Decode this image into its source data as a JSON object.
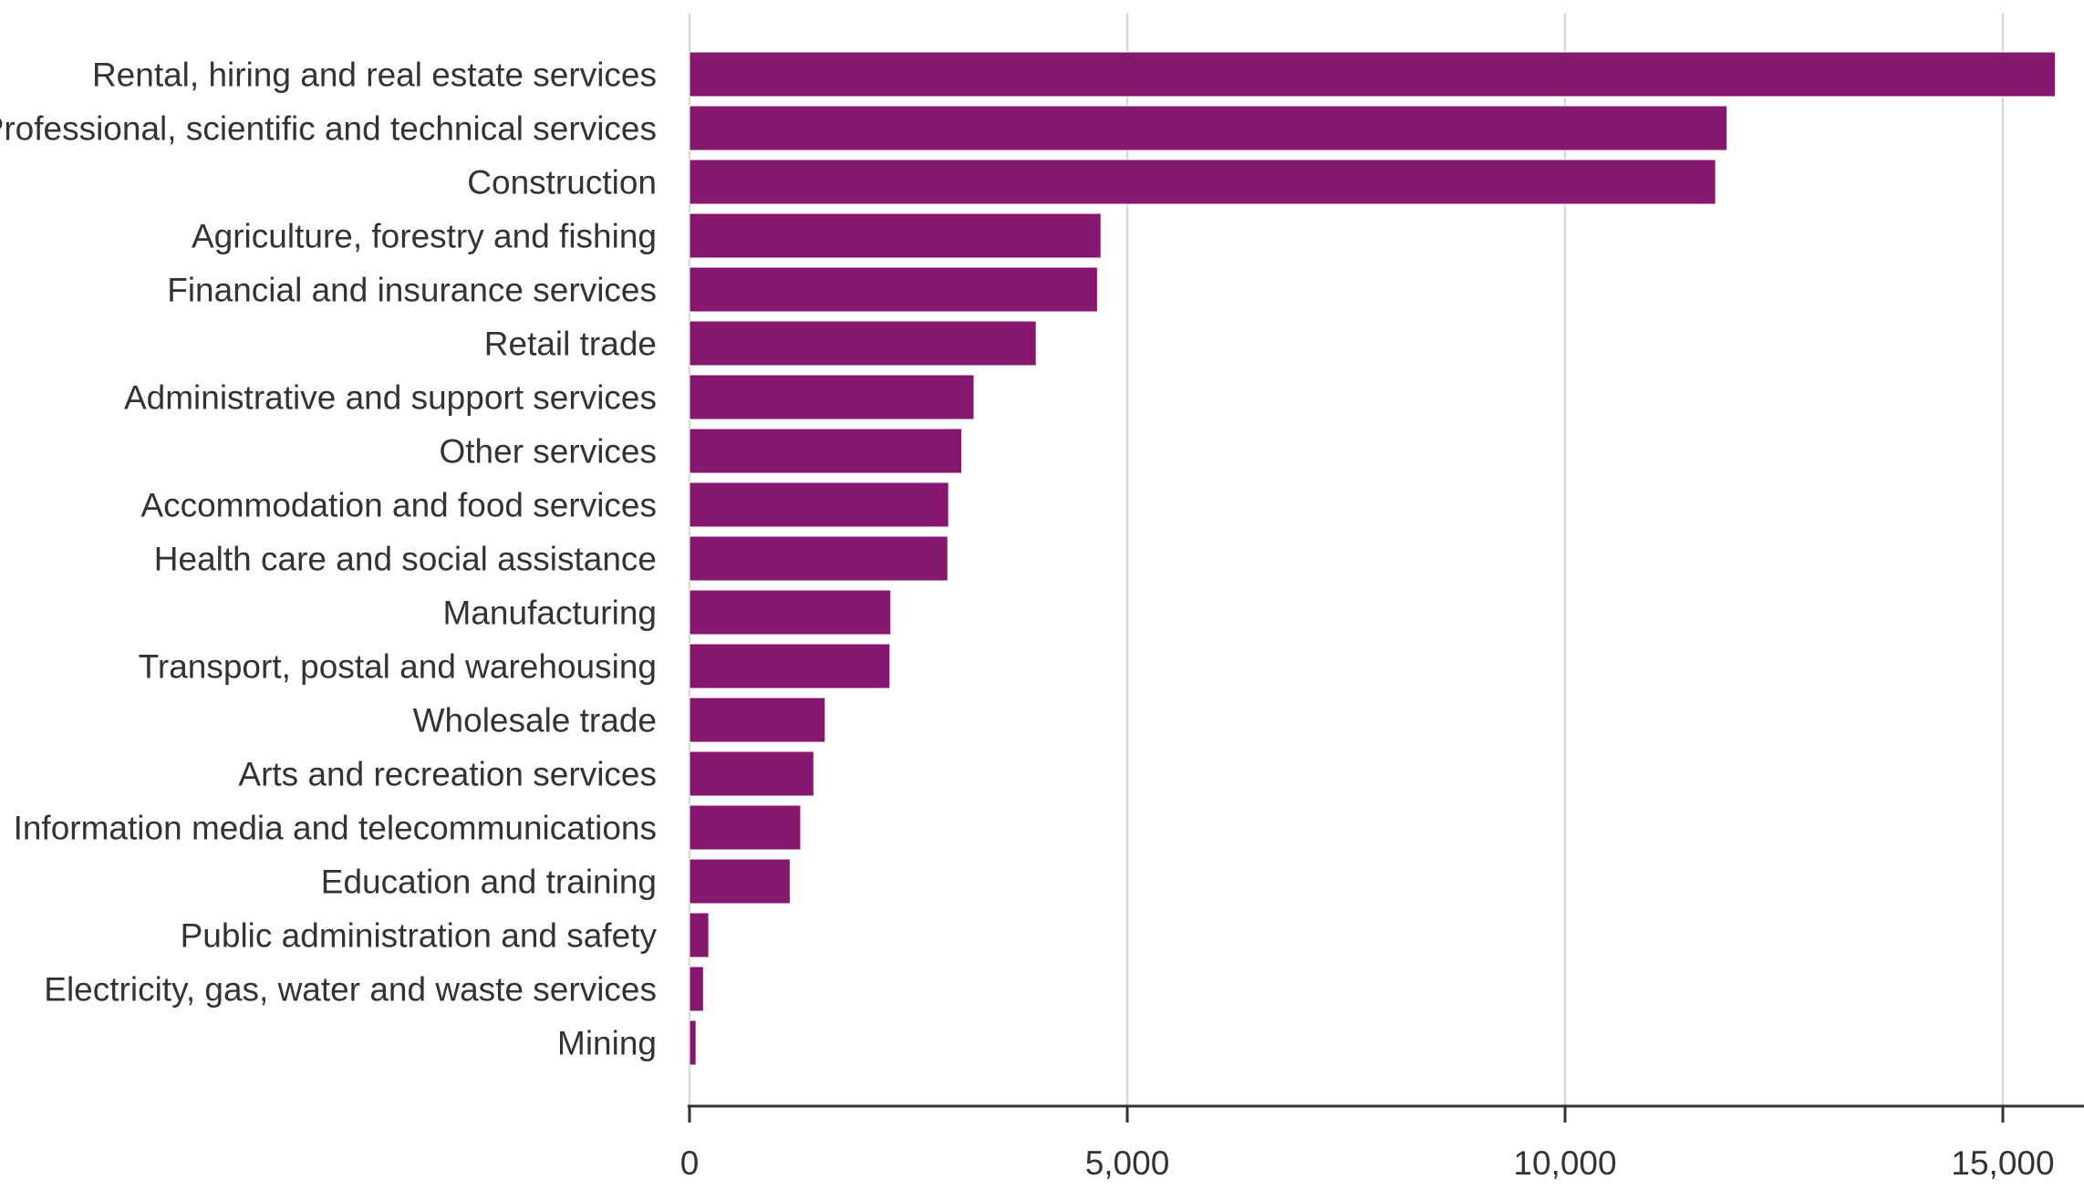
{
  "chart_data": {
    "type": "bar",
    "orientation": "horizontal",
    "title": "",
    "xlabel": "",
    "ylabel": "",
    "xlim": [
      0,
      15600
    ],
    "x_ticks": [
      0,
      5000,
      10000,
      15000
    ],
    "x_tick_labels": [
      "0",
      "5,000",
      "10,000",
      "15,000"
    ],
    "grid": "vertical",
    "legend": "none",
    "bar_color": "#86176e",
    "categories": [
      "Rental, hiring and real estate services",
      "Professional, scientific and technical services",
      "Construction",
      "Agriculture, forestry and fishing",
      "Financial and insurance services",
      "Retail trade",
      "Administrative and support services",
      "Other services",
      "Accommodation and food services",
      "Health care and social assistance",
      "Manufacturing",
      "Transport, postal and warehousing",
      "Wholesale trade",
      "Arts and recreation services",
      "Information media and telecommunications",
      "Education and training",
      "Public administration and safety",
      "Electricity, gas, water and waste services",
      "Mining"
    ],
    "values": [
      15600,
      11850,
      11720,
      4700,
      4660,
      3960,
      3250,
      3110,
      2960,
      2950,
      2300,
      2290,
      1550,
      1420,
      1270,
      1150,
      220,
      160,
      75
    ]
  }
}
